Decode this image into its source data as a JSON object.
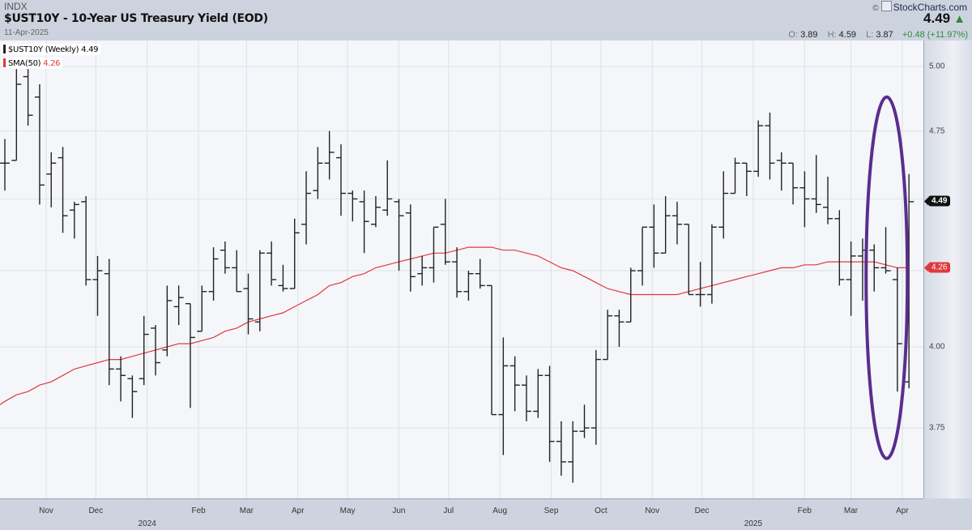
{
  "header": {
    "symbol_exchange": "INDX",
    "title": "$UST10Y - 10-Year US Treasury Yield (EOD)",
    "date": "11-Apr-2025",
    "brand": "StockCharts.com",
    "copyright": "©",
    "last_price": "4.49",
    "direction_icon": "triangle-up",
    "open_label": "O:",
    "open": "3.89",
    "high_label": "H:",
    "high": "4.59",
    "low_label": "L:",
    "low": "3.87",
    "change": "+0.48 (+11.97%)"
  },
  "legend": [
    {
      "label": "$UST10Y (Weekly)",
      "value": "4.49",
      "color": "#222222"
    },
    {
      "label": "SMA(50)",
      "value": "4.26",
      "color": "#e0393c"
    }
  ],
  "price_labels": {
    "last": "4.49",
    "sma": "4.26"
  },
  "colors": {
    "bars": "#222222",
    "sma": "#e0393c",
    "highlight_ellipse": "#5b2d8e",
    "up": "#2e8b3e"
  },
  "chart_data": {
    "type": "ohlc",
    "title": "$UST10Y - 10-Year US Treasury Yield (EOD)",
    "frequency": "weekly",
    "first_week_start": "2023-10-09",
    "last_week_start": "2025-04-07",
    "y_scale": "log",
    "ylim": [
      3.52,
      5.1
    ],
    "y_ticks": [
      {
        "v": 5.0,
        "label": "5.00"
      },
      {
        "v": 4.75,
        "label": "4.75"
      },
      {
        "v": 4.5,
        "label": ""
      },
      {
        "v": 4.25,
        "label": ""
      },
      {
        "v": 4.0,
        "label": "4.00"
      },
      {
        "v": 3.75,
        "label": "3.75"
      }
    ],
    "x_ticks": [
      {
        "date": "2023-11-01",
        "label": "Nov"
      },
      {
        "date": "2023-12-01",
        "label": "Dec"
      },
      {
        "date": "2024-01-01",
        "label": "2024",
        "year": true
      },
      {
        "date": "2024-02-01",
        "label": "Feb"
      },
      {
        "date": "2024-03-01",
        "label": "Mar"
      },
      {
        "date": "2024-04-01",
        "label": "Apr"
      },
      {
        "date": "2024-05-01",
        "label": "May"
      },
      {
        "date": "2024-06-01",
        "label": "Jun"
      },
      {
        "date": "2024-07-01",
        "label": "Jul"
      },
      {
        "date": "2024-08-01",
        "label": "Aug"
      },
      {
        "date": "2024-09-01",
        "label": "Sep"
      },
      {
        "date": "2024-10-01",
        "label": "Oct"
      },
      {
        "date": "2024-11-01",
        "label": "Nov"
      },
      {
        "date": "2024-12-01",
        "label": "Dec"
      },
      {
        "date": "2025-01-01",
        "label": "2025",
        "year": true
      },
      {
        "date": "2025-02-01",
        "label": "Feb"
      },
      {
        "date": "2025-03-01",
        "label": "Mar"
      },
      {
        "date": "2025-04-01",
        "label": "Apr"
      }
    ],
    "grid": true,
    "legend_position": "top-left",
    "ohlc": [
      [
        4.63,
        4.72,
        4.53,
        4.63
      ],
      [
        4.64,
        4.99,
        4.64,
        4.93
      ],
      [
        4.96,
        4.99,
        4.77,
        4.81
      ],
      [
        4.88,
        4.93,
        4.48,
        4.55
      ],
      [
        4.59,
        4.67,
        4.47,
        4.63
      ],
      [
        4.65,
        4.69,
        4.38,
        4.44
      ],
      [
        4.46,
        4.49,
        4.36,
        4.48
      ],
      [
        4.49,
        4.51,
        4.2,
        4.22
      ],
      [
        4.22,
        4.3,
        4.1,
        4.25
      ],
      [
        4.24,
        4.29,
        3.88,
        3.93
      ],
      [
        3.93,
        3.97,
        3.83,
        3.91
      ],
      [
        3.9,
        3.91,
        3.78,
        3.86
      ],
      [
        3.9,
        4.1,
        3.88,
        4.04
      ],
      [
        4.06,
        4.07,
        3.91,
        3.95
      ],
      [
        3.99,
        4.2,
        3.97,
        4.15
      ],
      [
        4.13,
        4.2,
        4.07,
        4.16
      ],
      [
        4.14,
        4.14,
        3.81,
        4.03
      ],
      [
        4.05,
        4.2,
        4.05,
        4.18
      ],
      [
        4.18,
        4.33,
        4.15,
        4.29
      ],
      [
        4.32,
        4.35,
        4.24,
        4.26
      ],
      [
        4.26,
        4.32,
        4.18,
        4.18
      ],
      [
        4.19,
        4.24,
        4.04,
        4.09
      ],
      [
        4.08,
        4.32,
        4.05,
        4.31
      ],
      [
        4.31,
        4.35,
        4.2,
        4.22
      ],
      [
        4.2,
        4.27,
        4.18,
        4.19
      ],
      [
        4.19,
        4.43,
        4.19,
        4.38
      ],
      [
        4.41,
        4.6,
        4.34,
        4.52
      ],
      [
        4.53,
        4.69,
        4.5,
        4.63
      ],
      [
        4.63,
        4.75,
        4.57,
        4.67
      ],
      [
        4.65,
        4.7,
        4.44,
        4.52
      ],
      [
        4.52,
        4.53,
        4.42,
        4.5
      ],
      [
        4.49,
        4.53,
        4.31,
        4.42
      ],
      [
        4.41,
        4.51,
        4.4,
        4.47
      ],
      [
        4.46,
        4.64,
        4.44,
        4.5
      ],
      [
        4.49,
        4.5,
        4.25,
        4.44
      ],
      [
        4.45,
        4.48,
        4.18,
        4.23
      ],
      [
        4.24,
        4.3,
        4.2,
        4.26
      ],
      [
        4.26,
        4.4,
        4.21,
        4.4
      ],
      [
        4.41,
        4.5,
        4.27,
        4.28
      ],
      [
        4.28,
        4.33,
        4.16,
        4.18
      ],
      [
        4.18,
        4.25,
        4.15,
        4.24
      ],
      [
        4.24,
        4.29,
        4.19,
        4.2
      ],
      [
        4.2,
        4.2,
        3.79,
        3.79
      ],
      [
        3.79,
        4.03,
        3.67,
        3.94
      ],
      [
        3.94,
        3.97,
        3.8,
        3.88
      ],
      [
        3.88,
        3.91,
        3.77,
        3.8
      ],
      [
        3.8,
        3.93,
        3.78,
        3.91
      ],
      [
        3.91,
        3.94,
        3.65,
        3.71
      ],
      [
        3.71,
        3.77,
        3.61,
        3.65
      ],
      [
        3.65,
        3.77,
        3.59,
        3.74
      ],
      [
        3.74,
        3.82,
        3.72,
        3.75
      ],
      [
        3.75,
        3.99,
        3.7,
        3.96
      ],
      [
        3.96,
        4.12,
        3.96,
        4.1
      ],
      [
        4.1,
        4.12,
        4.0,
        4.08
      ],
      [
        4.08,
        4.26,
        4.08,
        4.25
      ],
      [
        4.25,
        4.4,
        4.2,
        4.4
      ],
      [
        4.4,
        4.48,
        4.26,
        4.31
      ],
      [
        4.31,
        4.51,
        4.31,
        4.44
      ],
      [
        4.44,
        4.49,
        4.34,
        4.41
      ],
      [
        4.41,
        4.41,
        4.17,
        4.17
      ],
      [
        4.17,
        4.28,
        4.13,
        4.17
      ],
      [
        4.17,
        4.41,
        4.14,
        4.4
      ],
      [
        4.4,
        4.6,
        4.36,
        4.52
      ],
      [
        4.52,
        4.65,
        4.52,
        4.63
      ],
      [
        4.63,
        4.63,
        4.51,
        4.6
      ],
      [
        4.6,
        4.79,
        4.58,
        4.77
      ],
      [
        4.77,
        4.82,
        4.57,
        4.63
      ],
      [
        4.64,
        4.67,
        4.53,
        4.63
      ],
      [
        4.63,
        4.63,
        4.48,
        4.54
      ],
      [
        4.54,
        4.6,
        4.4,
        4.5
      ],
      [
        4.5,
        4.66,
        4.45,
        4.48
      ],
      [
        4.47,
        4.58,
        4.41,
        4.43
      ],
      [
        4.43,
        4.46,
        4.2,
        4.22
      ],
      [
        4.22,
        4.35,
        4.1,
        4.3
      ],
      [
        4.3,
        4.36,
        4.15,
        4.32
      ],
      [
        4.32,
        4.34,
        4.18,
        4.26
      ],
      [
        4.26,
        4.4,
        4.24,
        4.25
      ],
      [
        4.22,
        4.26,
        3.86,
        4.01
      ],
      [
        3.89,
        4.59,
        3.87,
        4.49
      ]
    ],
    "sma50": [
      3.83,
      3.85,
      3.86,
      3.88,
      3.89,
      3.91,
      3.93,
      3.94,
      3.95,
      3.96,
      3.96,
      3.97,
      3.98,
      3.99,
      4.0,
      4.01,
      4.01,
      4.02,
      4.03,
      4.05,
      4.06,
      4.08,
      4.09,
      4.1,
      4.11,
      4.13,
      4.15,
      4.17,
      4.2,
      4.21,
      4.23,
      4.24,
      4.26,
      4.27,
      4.28,
      4.29,
      4.3,
      4.31,
      4.31,
      4.32,
      4.33,
      4.33,
      4.33,
      4.32,
      4.32,
      4.31,
      4.3,
      4.28,
      4.26,
      4.25,
      4.23,
      4.21,
      4.19,
      4.18,
      4.17,
      4.17,
      4.17,
      4.17,
      4.17,
      4.18,
      4.19,
      4.2,
      4.21,
      4.22,
      4.23,
      4.24,
      4.25,
      4.26,
      4.26,
      4.27,
      4.27,
      4.28,
      4.28,
      4.28,
      4.28,
      4.28,
      4.27,
      4.26,
      4.26
    ],
    "highlight": {
      "shape": "ellipse",
      "weeks_from_end": [
        0,
        3
      ],
      "value_range": [
        3.66,
        4.88
      ]
    }
  }
}
